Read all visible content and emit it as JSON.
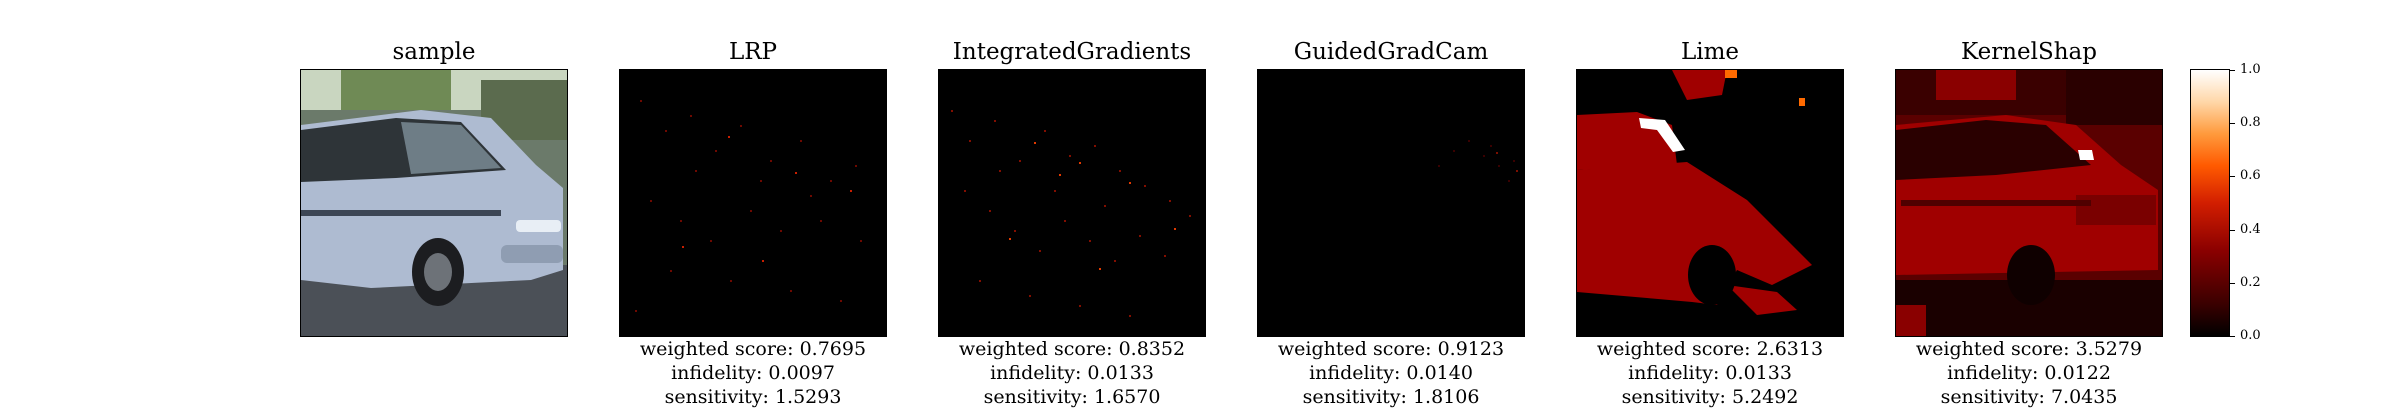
{
  "panels": [
    {
      "title": "sample"
    },
    {
      "title": "LRP",
      "weighted_score": "weighted score: 0.7695",
      "infidelity": "infidelity: 0.0097",
      "sensitivity": "sensitivity: 1.5293"
    },
    {
      "title": "IntegratedGradients",
      "weighted_score": "weighted score: 0.8352",
      "infidelity": "infidelity: 0.0133",
      "sensitivity": "sensitivity: 1.6570"
    },
    {
      "title": "GuidedGradCam",
      "weighted_score": "weighted score: 0.9123",
      "infidelity": "infidelity: 0.0140",
      "sensitivity": "sensitivity: 1.8106"
    },
    {
      "title": "Lime",
      "weighted_score": "weighted score: 2.6313",
      "infidelity": "infidelity: 0.0133",
      "sensitivity": "sensitivity: 5.2492"
    },
    {
      "title": "KernelShap",
      "weighted_score": "weighted score: 3.5279",
      "infidelity": "infidelity: 0.0122",
      "sensitivity": "sensitivity: 7.0435"
    }
  ],
  "colorbar": {
    "ticks": [
      "0.0",
      "0.2",
      "0.4",
      "0.6",
      "0.8",
      "1.0"
    ],
    "colormap_colors": [
      "#000000",
      "#8a0000",
      "#d21e00",
      "#ff9a3c",
      "#ffffff"
    ]
  }
}
